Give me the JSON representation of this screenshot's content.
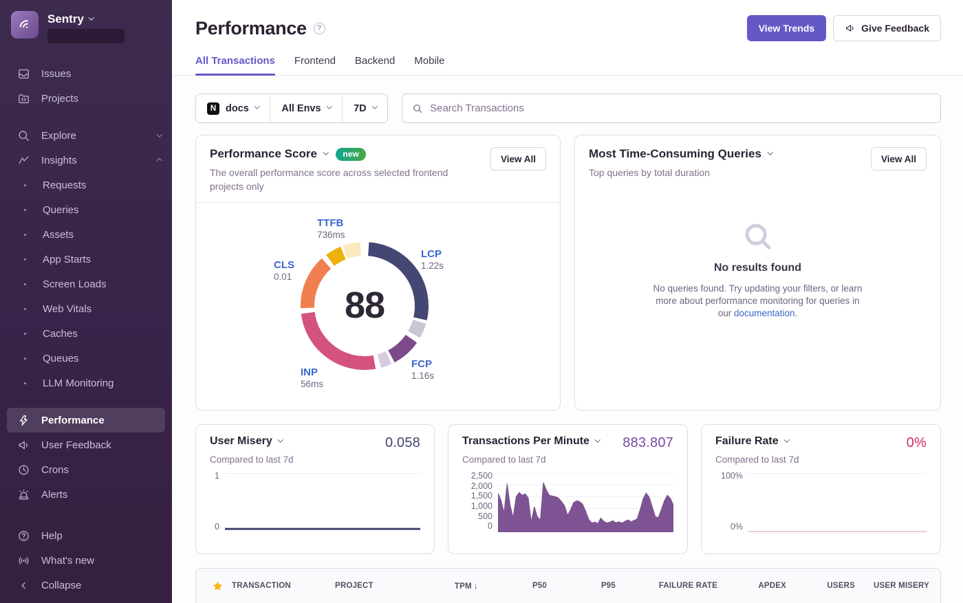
{
  "sidebar": {
    "brand": "Sentry",
    "nav_top": [
      {
        "label": "Issues"
      },
      {
        "label": "Projects"
      }
    ],
    "explore": {
      "label": "Explore"
    },
    "insights": {
      "label": "Insights"
    },
    "insights_items": [
      {
        "label": "Requests"
      },
      {
        "label": "Queries"
      },
      {
        "label": "Assets"
      },
      {
        "label": "App Starts"
      },
      {
        "label": "Screen Loads"
      },
      {
        "label": "Web Vitals"
      },
      {
        "label": "Caches"
      },
      {
        "label": "Queues"
      },
      {
        "label": "LLM Monitoring"
      }
    ],
    "nav_tools": [
      {
        "label": "Performance",
        "active": true
      },
      {
        "label": "User Feedback"
      },
      {
        "label": "Crons"
      },
      {
        "label": "Alerts"
      }
    ],
    "nav_footer": [
      {
        "label": "Help"
      },
      {
        "label": "What's new"
      }
    ],
    "collapse_label": "Collapse"
  },
  "header": {
    "title": "Performance",
    "view_trends_label": "View Trends",
    "give_feedback_label": "Give Feedback"
  },
  "tabs": {
    "items": [
      {
        "label": "All Transactions",
        "active": true
      },
      {
        "label": "Frontend"
      },
      {
        "label": "Backend"
      },
      {
        "label": "Mobile"
      }
    ]
  },
  "filter_bar": {
    "project_avatar_letter": "N",
    "project_label": "docs",
    "env_label": "All Envs",
    "date_label": "7D",
    "search_placeholder": "Search Transactions"
  },
  "performance_score_card": {
    "title": "Performance Score",
    "badge": "new",
    "view_all_label": "View All",
    "description": "The overall performance score across selected frontend projects only",
    "score": "88",
    "labels": {
      "ttfb_name": "TTFB",
      "ttfb_value": "736ms",
      "lcp_name": "LCP",
      "lcp_value": "1.22s",
      "cls_name": "CLS",
      "cls_value": "0.01",
      "inp_name": "INP",
      "inp_value": "56ms",
      "fcp_name": "FCP",
      "fcp_value": "1.16s"
    }
  },
  "queries_card": {
    "title": "Most Time-Consuming Queries",
    "view_all_label": "View All",
    "subtitle": "Top queries by total duration",
    "empty_heading": "No results found",
    "empty_line1": "No queries found. Try updating your filters, or learn",
    "empty_line2": "more about performance monitoring for queries in",
    "empty_line3_prefix": "our ",
    "empty_link": "documentation",
    "empty_line3_suffix": "."
  },
  "mini_cards": {
    "user_misery": {
      "title": "User Misery",
      "value": "0.058",
      "subtitle": "Compared to last 7d",
      "yticks": [
        "1",
        "0"
      ],
      "value_color": "#444674"
    },
    "tpm": {
      "title": "Transactions Per Minute",
      "value": "883.807",
      "subtitle": "Compared to last 7d",
      "yticks": [
        "2,500",
        "2,000",
        "1,500",
        "1,000",
        "500",
        "0"
      ],
      "value_color": "#7a49a5"
    },
    "failure_rate": {
      "title": "Failure Rate",
      "value": "0%",
      "subtitle": "Compared to last 7d",
      "yticks": [
        "100%",
        "0%"
      ],
      "value_color": "#d02e5e"
    }
  },
  "table": {
    "columns": [
      "TRANSACTION",
      "PROJECT",
      "TPM",
      "P50",
      "P95",
      "FAILURE RATE",
      "APDEX",
      "USERS",
      "USER MISERY"
    ],
    "sorted_column": "TPM",
    "sort_arrow": "↓"
  },
  "colors": {
    "accent_purple": "#6358c5",
    "link_blue": "#3b66cc",
    "badge_gradient": [
      "#10a695",
      "#4ba73f"
    ],
    "star_gold": "#f2b712"
  },
  "chart_data": [
    {
      "type": "donut",
      "title": "Performance Score",
      "center_value": 88,
      "vitals": [
        {
          "name": "LCP",
          "value": "1.22s",
          "color": "#444674"
        },
        {
          "name": "FCP",
          "value": "1.16s",
          "color": "#7d4a8a"
        },
        {
          "name": "INP",
          "value": "56ms",
          "color": "#d4537e"
        },
        {
          "name": "CLS",
          "value": "0.01",
          "color": "#ef7f4e"
        },
        {
          "name": "TTFB",
          "value": "736ms",
          "color": "#eeb10c"
        }
      ],
      "segments_deg": [
        {
          "metric": "LCP",
          "part": "filled",
          "color": "#444674",
          "start": 4,
          "end": 103
        },
        {
          "metric": "LCP",
          "part": "remainder",
          "color": "#c9c7d6",
          "start": 106,
          "end": 120
        },
        {
          "metric": "FCP",
          "part": "filled",
          "color": "#7d4a8a",
          "start": 125,
          "end": 152
        },
        {
          "metric": "FCP",
          "part": "remainder",
          "color": "#d8cbe0",
          "start": 155,
          "end": 165
        },
        {
          "metric": "INP",
          "part": "filled",
          "color": "#d4537e",
          "start": 170,
          "end": 263
        },
        {
          "metric": "CLS",
          "part": "filled",
          "color": "#ef7f4e",
          "start": 268,
          "end": 318
        },
        {
          "metric": "TTFB",
          "part": "filled",
          "color": "#eeb10c",
          "start": 323,
          "end": 338
        },
        {
          "metric": "TTFB",
          "part": "remainder",
          "color": "#f9e9bd",
          "start": 340,
          "end": 356
        }
      ]
    },
    {
      "type": "line",
      "title": "User Misery",
      "current": 0.058,
      "ylim": [
        0,
        1
      ],
      "yticks": [
        0,
        1
      ],
      "color": "#444674",
      "stroke_px": 3,
      "values": [
        0.055,
        0.055,
        0.055,
        0.055,
        0.055,
        0.055,
        0.055,
        0.055,
        0.055,
        0.055,
        0.055,
        0.055,
        0.055,
        0.055,
        0.055,
        0.055,
        0.055,
        0.055,
        0.055,
        0.055,
        0.055,
        0.055,
        0.055,
        0.055,
        0.055
      ]
    },
    {
      "type": "area",
      "title": "Transactions Per Minute",
      "current": 883.807,
      "ylim": [
        0,
        2500
      ],
      "yticks": [
        0,
        500,
        1000,
        1500,
        2000,
        2500
      ],
      "color": "#7d5393",
      "stroke_px": 1,
      "values": [
        1650,
        1350,
        820,
        2050,
        1150,
        620,
        1500,
        1680,
        1560,
        1620,
        1450,
        430,
        1080,
        650,
        520,
        2100,
        1780,
        1560,
        1530,
        1500,
        1440,
        1300,
        1120,
        720,
        950,
        1250,
        1330,
        1290,
        1180,
        880,
        540,
        390,
        430,
        360,
        600,
        460,
        390,
        430,
        480,
        400,
        440,
        390,
        460,
        520,
        440,
        500,
        560,
        950,
        1420,
        1660,
        1480,
        1080,
        660,
        620,
        950,
        1330,
        1560,
        1430,
        1150
      ]
    },
    {
      "type": "line",
      "title": "Failure Rate",
      "current": 0,
      "ylim": [
        0,
        100
      ],
      "yticks": [
        0,
        100
      ],
      "color": "#e7a8bc",
      "stroke_px": 1.2,
      "values": [
        0,
        0,
        0,
        0,
        0,
        0,
        0,
        0,
        0,
        0,
        0,
        0,
        0,
        0,
        0,
        0,
        0,
        0,
        0,
        0,
        0,
        0,
        0,
        0,
        0
      ]
    }
  ]
}
